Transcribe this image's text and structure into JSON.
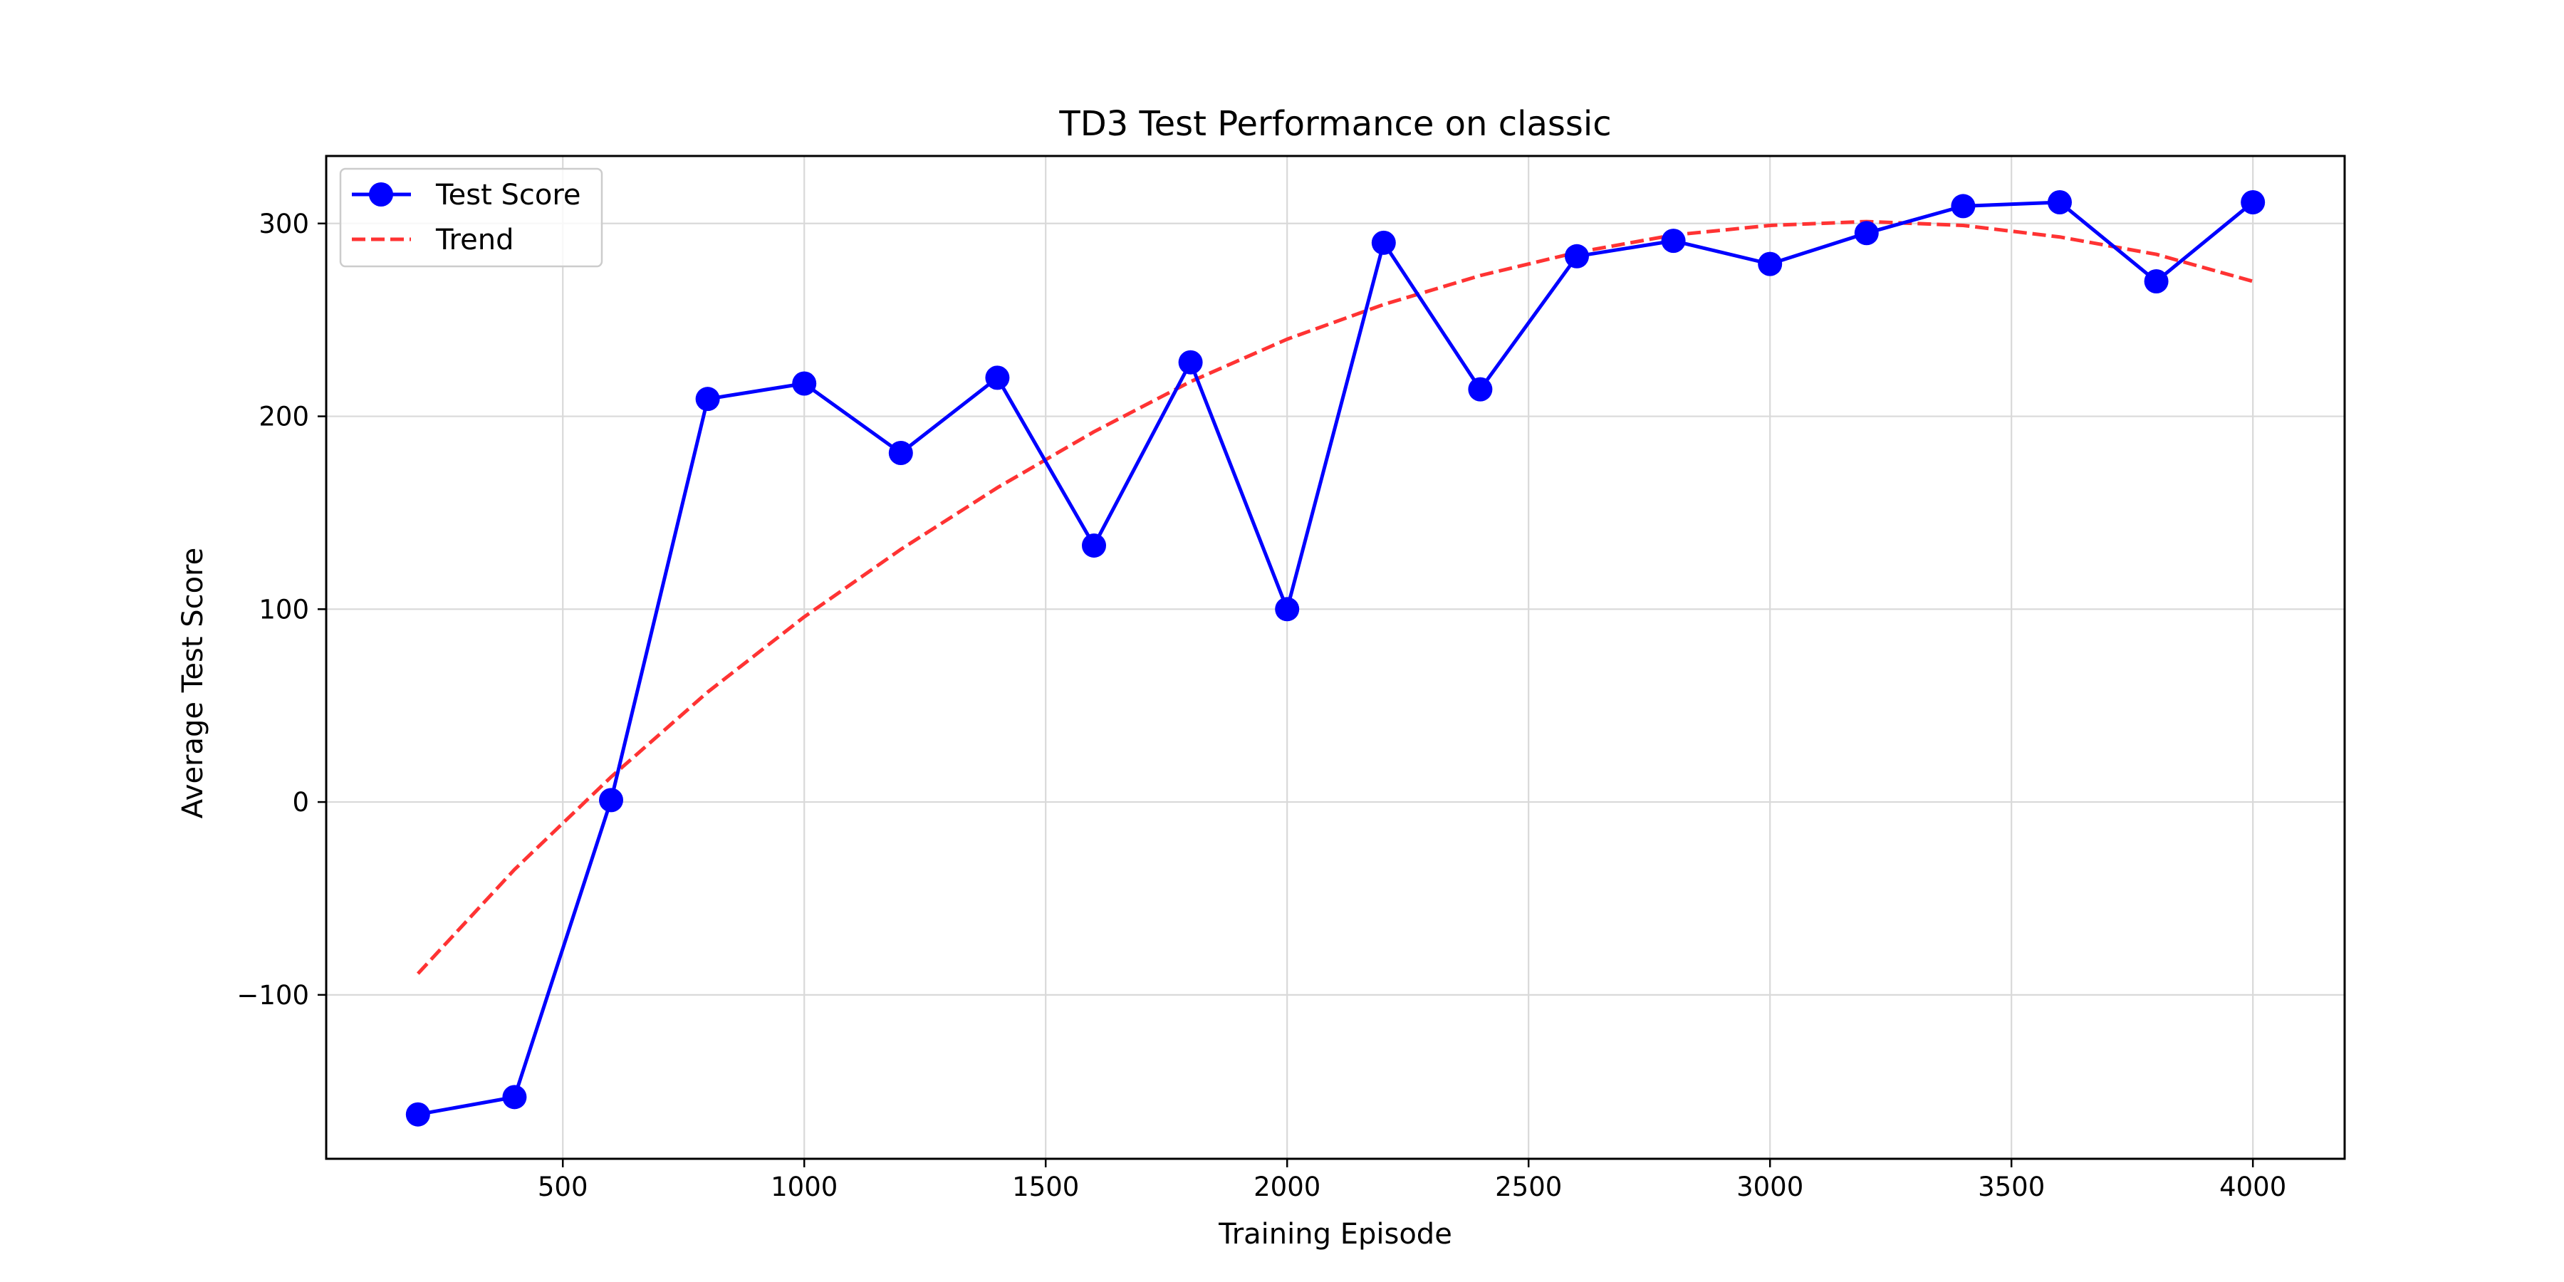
{
  "chart_data": {
    "type": "line",
    "title": "TD3 Test Performance on classic",
    "xlabel": "Training Episode",
    "ylabel": "Average Test Score",
    "xlim": [
      10,
      4190
    ],
    "ylim": [
      -185,
      335
    ],
    "xticks": [
      500,
      1000,
      1500,
      2000,
      2500,
      3000,
      3500,
      4000
    ],
    "yticks": [
      -100,
      0,
      100,
      200,
      300
    ],
    "ytick_labels": [
      "−100",
      "0",
      "100",
      "200",
      "300"
    ],
    "grid": true,
    "legend_position": "upper-left",
    "series": [
      {
        "name": "Test Score",
        "style": "solid-with-markers",
        "color": "#0000ff",
        "x": [
          200,
          400,
          600,
          800,
          1000,
          1200,
          1400,
          1600,
          1800,
          2000,
          2200,
          2400,
          2600,
          2800,
          3000,
          3200,
          3400,
          3600,
          3800,
          4000
        ],
        "y": [
          -162,
          -153,
          1,
          209,
          217,
          181,
          220,
          133,
          228,
          100,
          290,
          214,
          283,
          291,
          279,
          295,
          309,
          311,
          270,
          311
        ]
      },
      {
        "name": "Trend",
        "style": "dashed",
        "color": "#ff3333",
        "x": [
          200,
          400,
          600,
          800,
          1000,
          1200,
          1400,
          1600,
          1800,
          2000,
          2200,
          2400,
          2600,
          2800,
          3000,
          3200,
          3400,
          3600,
          3800,
          4000
        ],
        "y": [
          -89,
          -35,
          13,
          57,
          96,
          131,
          163,
          192,
          218,
          240,
          258,
          273,
          285,
          294,
          299,
          301,
          299,
          293,
          284,
          270
        ]
      }
    ]
  }
}
